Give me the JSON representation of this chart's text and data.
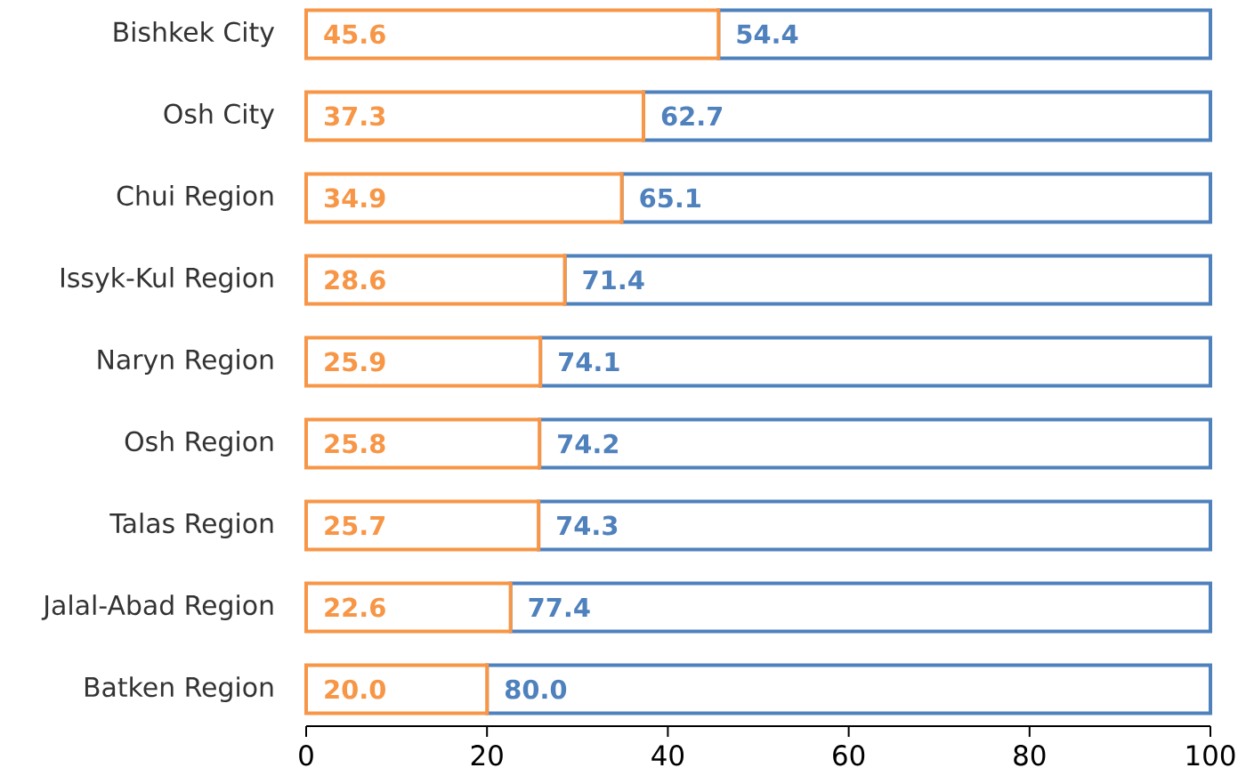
{
  "chart_data": {
    "type": "bar",
    "orientation": "horizontal",
    "stacked": true,
    "categories": [
      "Bishkek City",
      "Osh City",
      "Chui Region",
      "Issyk-Kul Region",
      "Naryn Region",
      "Osh Region",
      "Talas Region",
      "Jalal-Abad Region",
      "Batken Region"
    ],
    "series": [
      {
        "color": "#f79646",
        "values": [
          45.6,
          37.3,
          34.9,
          28.6,
          25.9,
          25.8,
          25.7,
          22.6,
          20.0
        ],
        "value_labels": [
          "45.6",
          "37.3",
          "34.9",
          "28.6",
          "25.9",
          "25.8",
          "25.7",
          "22.6",
          "20.0"
        ]
      },
      {
        "color": "#4f81bd",
        "values": [
          54.4,
          62.7,
          65.1,
          71.4,
          74.1,
          74.2,
          74.3,
          77.4,
          80.0
        ],
        "value_labels": [
          "54.4",
          "62.7",
          "65.1",
          "71.4",
          "74.1",
          "74.2",
          "74.3",
          "77.4",
          "80.0"
        ]
      }
    ],
    "xlim": [
      0,
      100
    ],
    "xticks": [
      0,
      20,
      40,
      60,
      80,
      100
    ]
  }
}
